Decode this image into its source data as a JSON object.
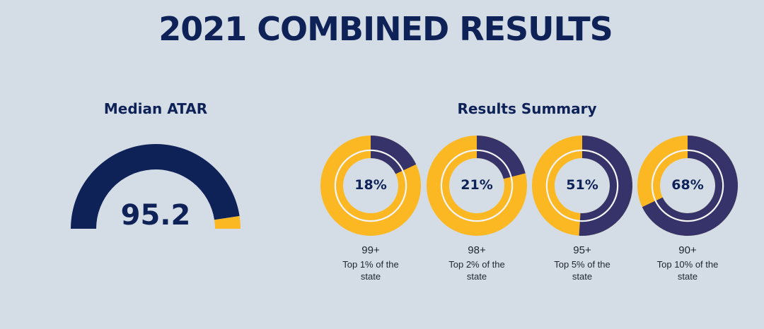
{
  "title": "2021 COMBINED RESULTS",
  "median": {
    "heading": "Median ATAR",
    "value_label": "95.2"
  },
  "summary": {
    "heading": "Results Summary",
    "items": [
      {
        "pct_label": "18%",
        "band": "99+",
        "desc": "Top 1% of the state"
      },
      {
        "pct_label": "21%",
        "band": "98+",
        "desc": "Top 2% of the state"
      },
      {
        "pct_label": "51%",
        "band": "95+",
        "desc": "Top 5% of the state"
      },
      {
        "pct_label": "68%",
        "band": "90+",
        "desc": "Top 10% of the state"
      }
    ]
  },
  "colors": {
    "background": "#d4dde6",
    "navy": "#0f2257",
    "ring_navy": "#35336a",
    "gold": "#fbb823"
  },
  "chart_data": [
    {
      "type": "gauge",
      "title": "Median ATAR",
      "value": 95.2,
      "range": [
        0,
        100
      ]
    },
    {
      "type": "pie",
      "title": "Results Summary",
      "categories": [
        "99+",
        "98+",
        "95+",
        "90+"
      ],
      "values": [
        18,
        21,
        51,
        68
      ],
      "unit": "%"
    }
  ]
}
